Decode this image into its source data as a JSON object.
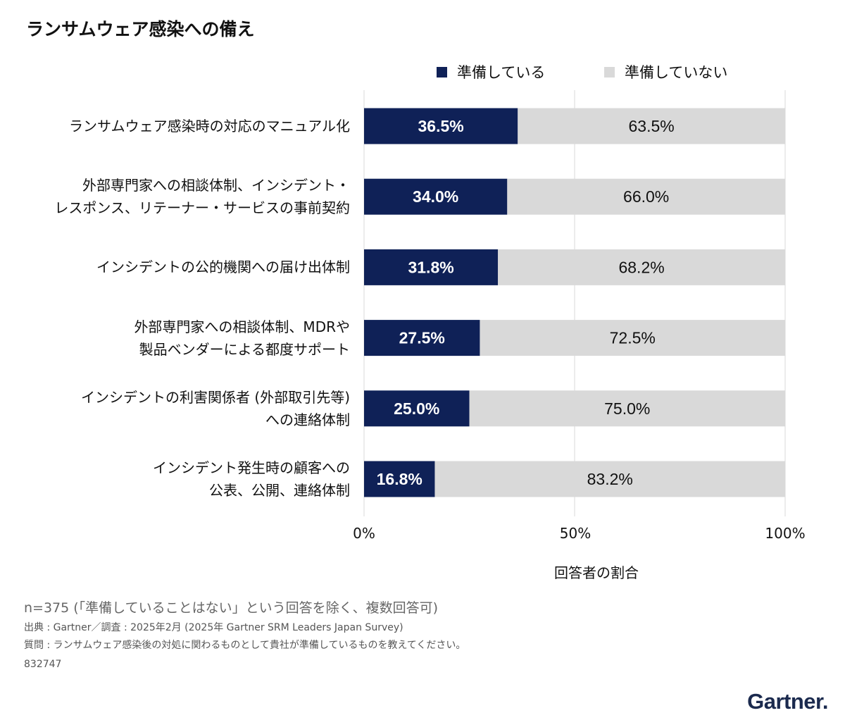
{
  "title": "ランサムウェア感染への備え",
  "legend": {
    "prepared": "準備している",
    "not_prepared": "準備していない"
  },
  "colors": {
    "prepared": "#0f2157",
    "not_prepared": "#d9d9d9",
    "grid": "#d9d9d9"
  },
  "chart_data": {
    "type": "bar",
    "orientation": "horizontal",
    "stacked": true,
    "categories": [
      [
        "ランサムウェア感染時の対応のマニュアル化"
      ],
      [
        "外部専門家への相談体制、インシデント・",
        "レスポンス、リテーナー・サービスの事前契約"
      ],
      [
        "インシデントの公的機関への届け出体制"
      ],
      [
        "外部専門家への相談体制、MDRや",
        "製品ベンダーによる都度サポート"
      ],
      [
        "インシデントの利害関係者 (外部取引先等)",
        "への連絡体制"
      ],
      [
        "インシデント発生時の顧客への",
        "公表、公開、連絡体制"
      ]
    ],
    "series": [
      {
        "name": "準備している",
        "values": [
          36.5,
          34.0,
          31.8,
          27.5,
          25.0,
          16.8
        ],
        "labels": [
          "36.5%",
          "34.0%",
          "31.8%",
          "27.5%",
          "25.0%",
          "16.8%"
        ]
      },
      {
        "name": "準備していない",
        "values": [
          63.5,
          66.0,
          68.2,
          72.5,
          75.0,
          83.2
        ],
        "labels": [
          "63.5%",
          "66.0%",
          "68.2%",
          "72.5%",
          "75.0%",
          "83.2%"
        ]
      }
    ],
    "xlim": [
      0,
      100
    ],
    "xticks": [
      "0%",
      "50%",
      "100%"
    ],
    "xlabel": "回答者の割合",
    "legend_position": "top-right",
    "grid": "vertical"
  },
  "footnotes": {
    "n": "n=375 (「準備していることはない」という回答を除く、複数回答可)",
    "source": "出典 : Gartner／調査 : 2025年2月 (2025年 Gartner SRM Leaders Japan Survey)",
    "question": "質問 : ランサムウェア感染後の対処に関わるものとして貴社が準備しているものを教えてください。",
    "id": "832747"
  },
  "logo": "Gartner."
}
